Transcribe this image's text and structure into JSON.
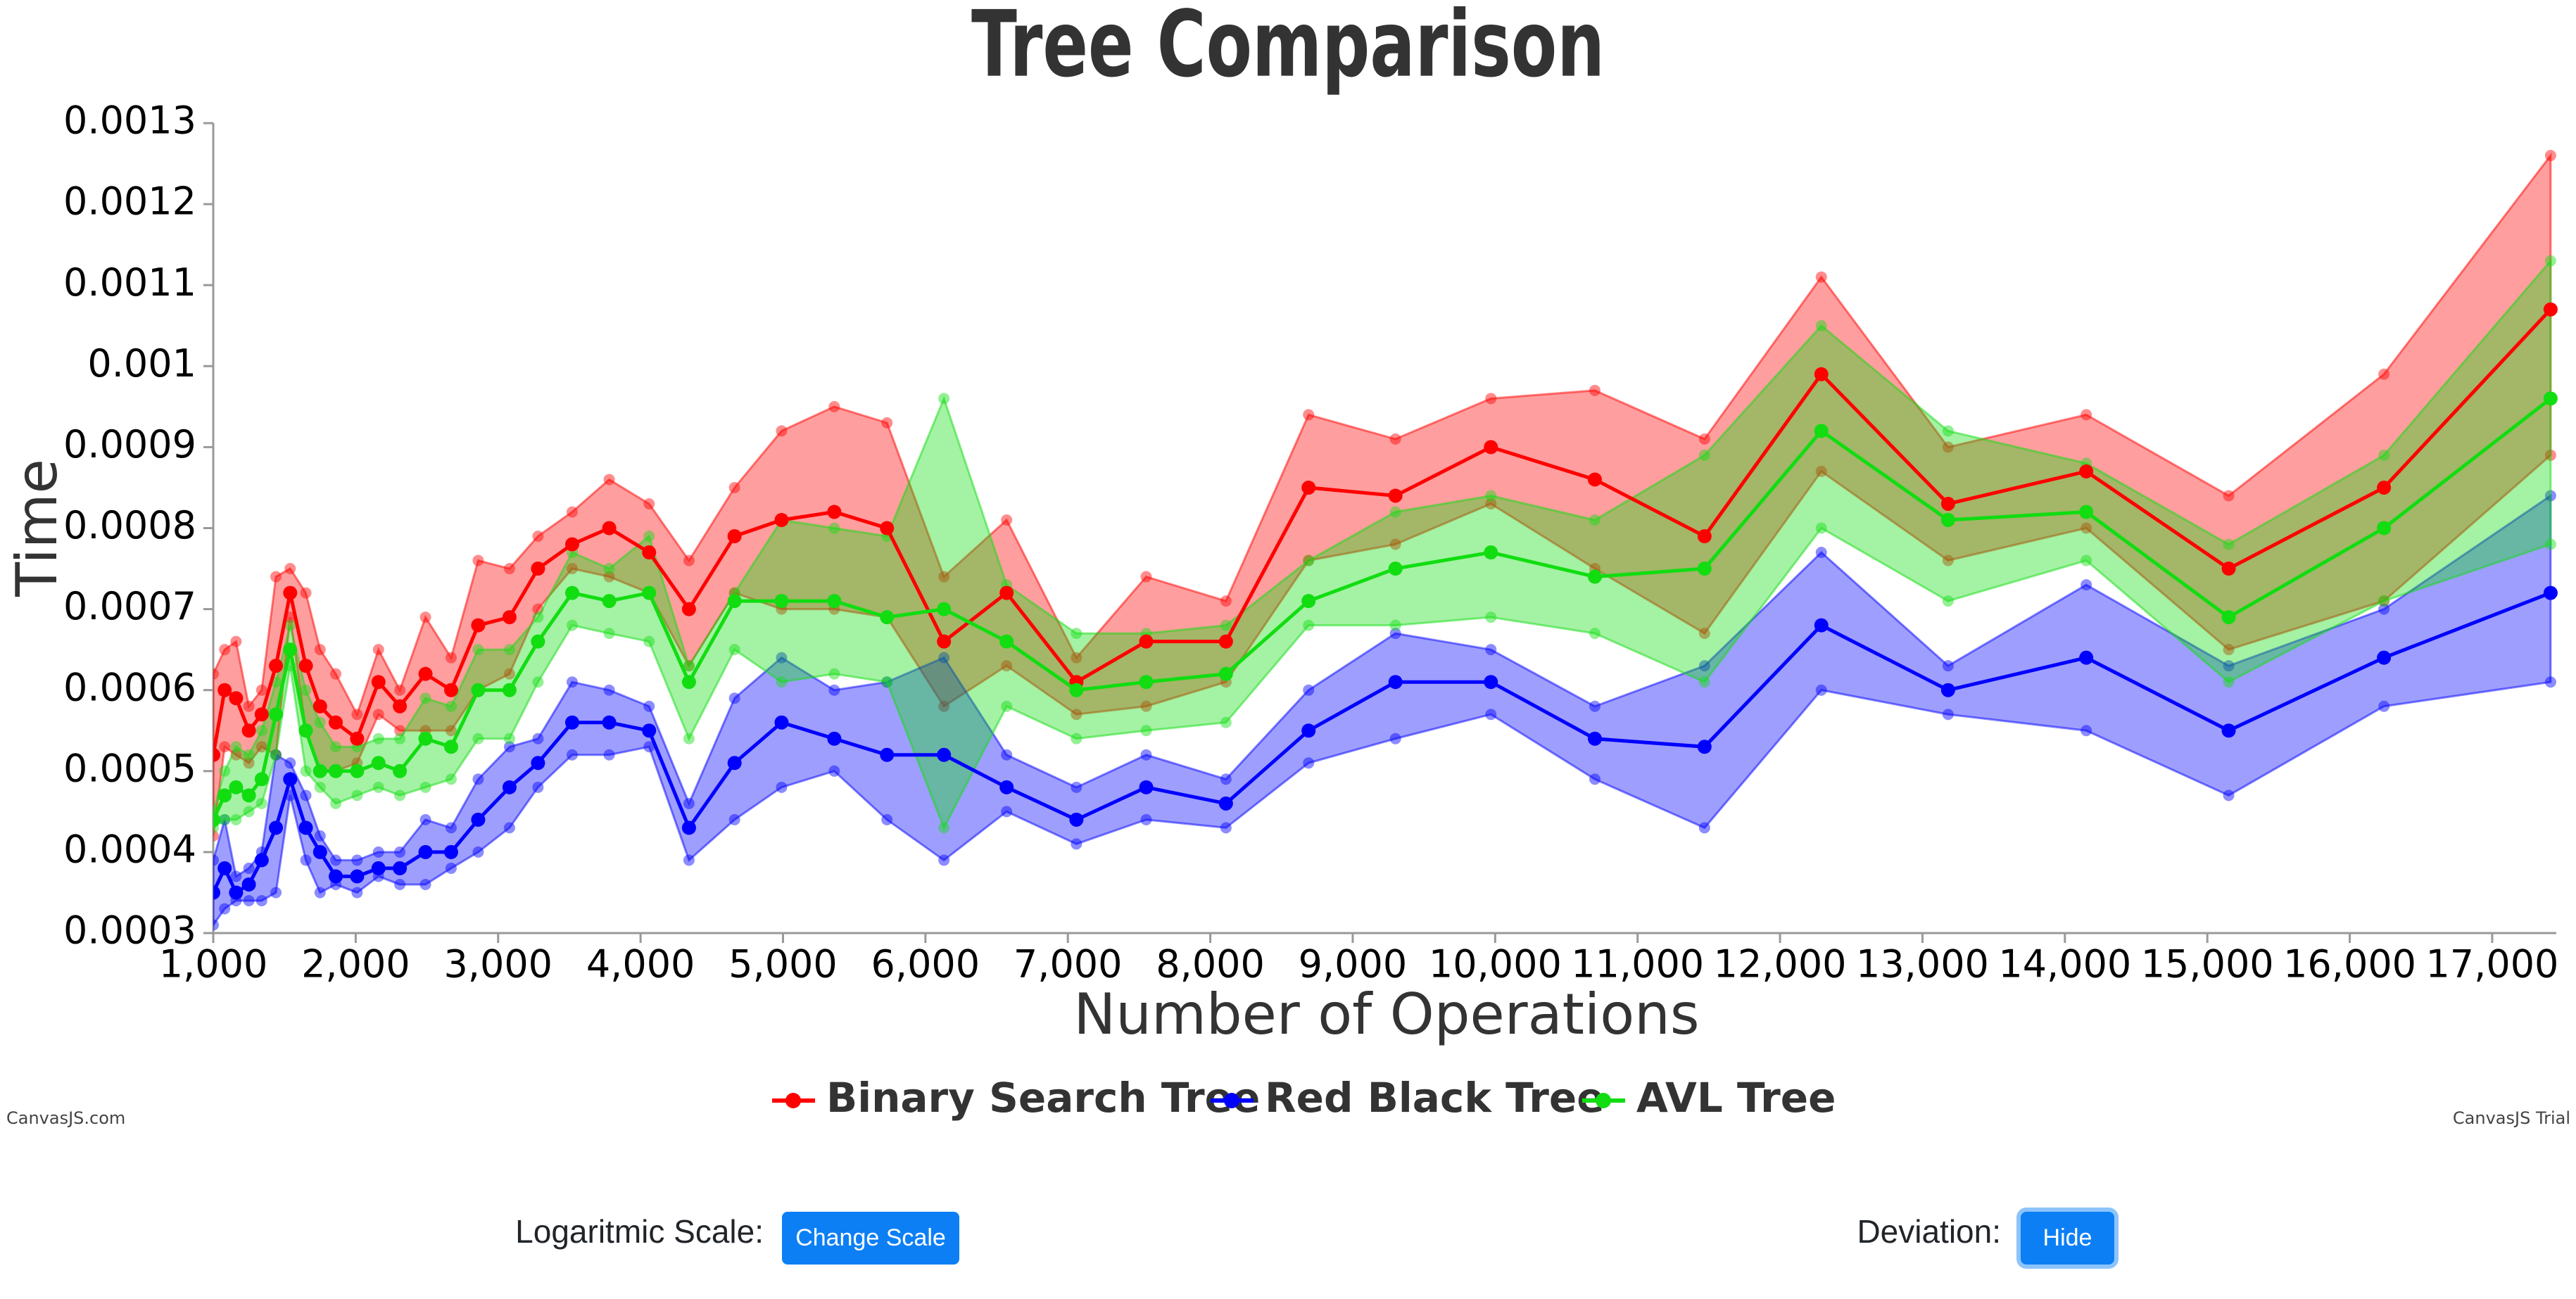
{
  "chart_data": {
    "type": "line",
    "title": "Tree Comparison",
    "x_label": "Number of Operations",
    "y_label": "Time",
    "log_scale": false,
    "legend": "bottom",
    "x": [
      1000,
      1080,
      1160,
      1250,
      1340,
      1440,
      1540,
      1650,
      1750,
      1860,
      2010,
      2160,
      2310,
      2490,
      2670,
      2860,
      3080,
      3280,
      3520,
      3780,
      4060,
      4340,
      4660,
      4990,
      5360,
      5730,
      6130,
      6570,
      7060,
      7550,
      8110,
      8690,
      9300,
      9970,
      10700,
      11470,
      12290,
      13180,
      14150,
      15150,
      16240,
      17410
    ],
    "xlim": [
      1000,
      17450
    ],
    "xticks": [
      {
        "value": 1000,
        "label": "1,000"
      },
      {
        "value": 2000,
        "label": "2,000"
      },
      {
        "value": 3000,
        "label": "3,000"
      },
      {
        "value": 4000,
        "label": "4,000"
      },
      {
        "value": 5000,
        "label": "5,000"
      },
      {
        "value": 6000,
        "label": "6,000"
      },
      {
        "value": 7000,
        "label": "7,000"
      },
      {
        "value": 8000,
        "label": "8,000"
      },
      {
        "value": 9000,
        "label": "9,000"
      },
      {
        "value": 10000,
        "label": "10,000"
      },
      {
        "value": 11000,
        "label": "11,000"
      },
      {
        "value": 12000,
        "label": "12,000"
      },
      {
        "value": 13000,
        "label": "13,000"
      },
      {
        "value": 14000,
        "label": "14,000"
      },
      {
        "value": 15000,
        "label": "15,000"
      },
      {
        "value": 16000,
        "label": "16,000"
      },
      {
        "value": 17000,
        "label": "17,000"
      }
    ],
    "ylim": [
      0.0003,
      0.0013
    ],
    "yticks": [
      0.0003,
      0.0004,
      0.0005,
      0.0006,
      0.0007,
      0.0008,
      0.0009,
      0.001,
      0.0011,
      0.0012,
      0.0013
    ],
    "series": [
      {
        "name": "Binary Search Tree",
        "color": "#ff0000",
        "values": [
          0.00052,
          0.0006,
          0.00059,
          0.00055,
          0.00057,
          0.00063,
          0.00072,
          0.00063,
          0.00058,
          0.00056,
          0.00054,
          0.00061,
          0.00058,
          0.00062,
          0.0006,
          0.00068,
          0.00069,
          0.00075,
          0.00078,
          0.0008,
          0.00077,
          0.0007,
          0.00079,
          0.00081,
          0.00082,
          0.0008,
          0.00066,
          0.00072,
          0.00061,
          0.00066,
          0.00066,
          0.00085,
          0.00084,
          0.0009,
          0.00086,
          0.00079,
          0.00099,
          0.00083,
          0.00087,
          0.00075,
          0.00085,
          0.00107
        ],
        "upper": [
          0.00062,
          0.00065,
          0.00066,
          0.00058,
          0.0006,
          0.00074,
          0.00075,
          0.00072,
          0.00065,
          0.00062,
          0.00057,
          0.00065,
          0.0006,
          0.00069,
          0.00064,
          0.00076,
          0.00075,
          0.00079,
          0.00082,
          0.00086,
          0.00083,
          0.00076,
          0.00085,
          0.00092,
          0.00095,
          0.00093,
          0.00074,
          0.00081,
          0.00064,
          0.00074,
          0.00071,
          0.00094,
          0.00091,
          0.00096,
          0.00097,
          0.00091,
          0.00111,
          0.0009,
          0.00094,
          0.00084,
          0.00099,
          0.00126
        ],
        "lower": [
          0.00042,
          0.00053,
          0.00052,
          0.00051,
          0.00053,
          0.00052,
          0.00069,
          0.00055,
          0.0005,
          0.0005,
          0.00051,
          0.00057,
          0.00055,
          0.00055,
          0.00055,
          0.0006,
          0.00062,
          0.0007,
          0.00075,
          0.00074,
          0.00072,
          0.00063,
          0.00072,
          0.0007,
          0.0007,
          0.00069,
          0.00058,
          0.00063,
          0.00057,
          0.00058,
          0.00061,
          0.00076,
          0.00078,
          0.00083,
          0.00075,
          0.00067,
          0.00087,
          0.00076,
          0.0008,
          0.00065,
          0.00071,
          0.00089
        ]
      },
      {
        "name": "Red Black Tree",
        "color": "#0000ff",
        "values": [
          0.00035,
          0.00038,
          0.00035,
          0.00036,
          0.00039,
          0.00043,
          0.00049,
          0.00043,
          0.0004,
          0.00037,
          0.00037,
          0.00038,
          0.00038,
          0.0004,
          0.0004,
          0.00044,
          0.00048,
          0.00051,
          0.00056,
          0.00056,
          0.00055,
          0.00043,
          0.00051,
          0.00056,
          0.00054,
          0.00052,
          0.00052,
          0.00048,
          0.00044,
          0.00048,
          0.00046,
          0.00055,
          0.00061,
          0.00061,
          0.00054,
          0.00053,
          0.00068,
          0.0006,
          0.00064,
          0.00055,
          0.00064,
          0.00072
        ],
        "upper": [
          0.00039,
          0.00044,
          0.00037,
          0.00038,
          0.0004,
          0.00052,
          0.00051,
          0.00047,
          0.00042,
          0.00039,
          0.00039,
          0.0004,
          0.0004,
          0.00044,
          0.00043,
          0.00049,
          0.00053,
          0.00054,
          0.00061,
          0.0006,
          0.00058,
          0.00046,
          0.00059,
          0.00064,
          0.0006,
          0.00061,
          0.00064,
          0.00052,
          0.00048,
          0.00052,
          0.00049,
          0.0006,
          0.00067,
          0.00065,
          0.00058,
          0.00063,
          0.00077,
          0.00063,
          0.00073,
          0.00063,
          0.0007,
          0.00084
        ],
        "lower": [
          0.00031,
          0.00033,
          0.00034,
          0.00034,
          0.00034,
          0.00035,
          0.00047,
          0.00039,
          0.00035,
          0.00036,
          0.00035,
          0.00037,
          0.00036,
          0.00036,
          0.00038,
          0.0004,
          0.00043,
          0.00048,
          0.00052,
          0.00052,
          0.00053,
          0.00039,
          0.00044,
          0.00048,
          0.0005,
          0.00044,
          0.00039,
          0.00045,
          0.00041,
          0.00044,
          0.00043,
          0.00051,
          0.00054,
          0.00057,
          0.00049,
          0.00043,
          0.0006,
          0.00057,
          0.00055,
          0.00047,
          0.00058,
          0.00061
        ]
      },
      {
        "name": "AVL Tree",
        "color": "#11dd11",
        "values": [
          0.00044,
          0.00047,
          0.00048,
          0.00047,
          0.00049,
          0.00057,
          0.00065,
          0.00055,
          0.0005,
          0.0005,
          0.0005,
          0.00051,
          0.0005,
          0.00054,
          0.00053,
          0.0006,
          0.0006,
          0.00066,
          0.00072,
          0.00071,
          0.00072,
          0.00061,
          0.00071,
          0.00071,
          0.00071,
          0.00069,
          0.0007,
          0.00066,
          0.0006,
          0.00061,
          0.00062,
          0.00071,
          0.00075,
          0.00077,
          0.00074,
          0.00075,
          0.00092,
          0.00081,
          0.00082,
          0.00069,
          0.0008,
          0.00096
        ],
        "upper": [
          0.00045,
          0.0005,
          0.00053,
          0.00052,
          0.00055,
          0.00061,
          0.00068,
          0.0006,
          0.00056,
          0.00053,
          0.00053,
          0.00054,
          0.00054,
          0.00059,
          0.00058,
          0.00065,
          0.00065,
          0.00069,
          0.00077,
          0.00075,
          0.00079,
          0.00063,
          0.00072,
          0.00081,
          0.0008,
          0.00079,
          0.00096,
          0.00073,
          0.00067,
          0.00067,
          0.00068,
          0.00076,
          0.00082,
          0.00084,
          0.00081,
          0.00089,
          0.00105,
          0.00092,
          0.00088,
          0.00078,
          0.00089,
          0.00113
        ],
        "lower": [
          0.00043,
          0.00044,
          0.00044,
          0.00045,
          0.00046,
          0.00052,
          0.00063,
          0.0005,
          0.00048,
          0.00046,
          0.00047,
          0.00048,
          0.00047,
          0.00048,
          0.00049,
          0.00054,
          0.00054,
          0.00061,
          0.00068,
          0.00067,
          0.00066,
          0.00054,
          0.00065,
          0.00061,
          0.00062,
          0.00061,
          0.00043,
          0.00058,
          0.00054,
          0.00055,
          0.00056,
          0.00068,
          0.00068,
          0.00069,
          0.00067,
          0.00061,
          0.0008,
          0.00071,
          0.00076,
          0.00061,
          0.00071,
          0.00078
        ]
      }
    ]
  },
  "credits": {
    "left": "CanvasJS.com",
    "right": "CanvasJS Trial"
  },
  "controls": {
    "scale_label": "Logaritmic Scale:",
    "scale_button": "Change Scale",
    "deviation_label": "Deviation:",
    "deviation_button": "Hide"
  }
}
